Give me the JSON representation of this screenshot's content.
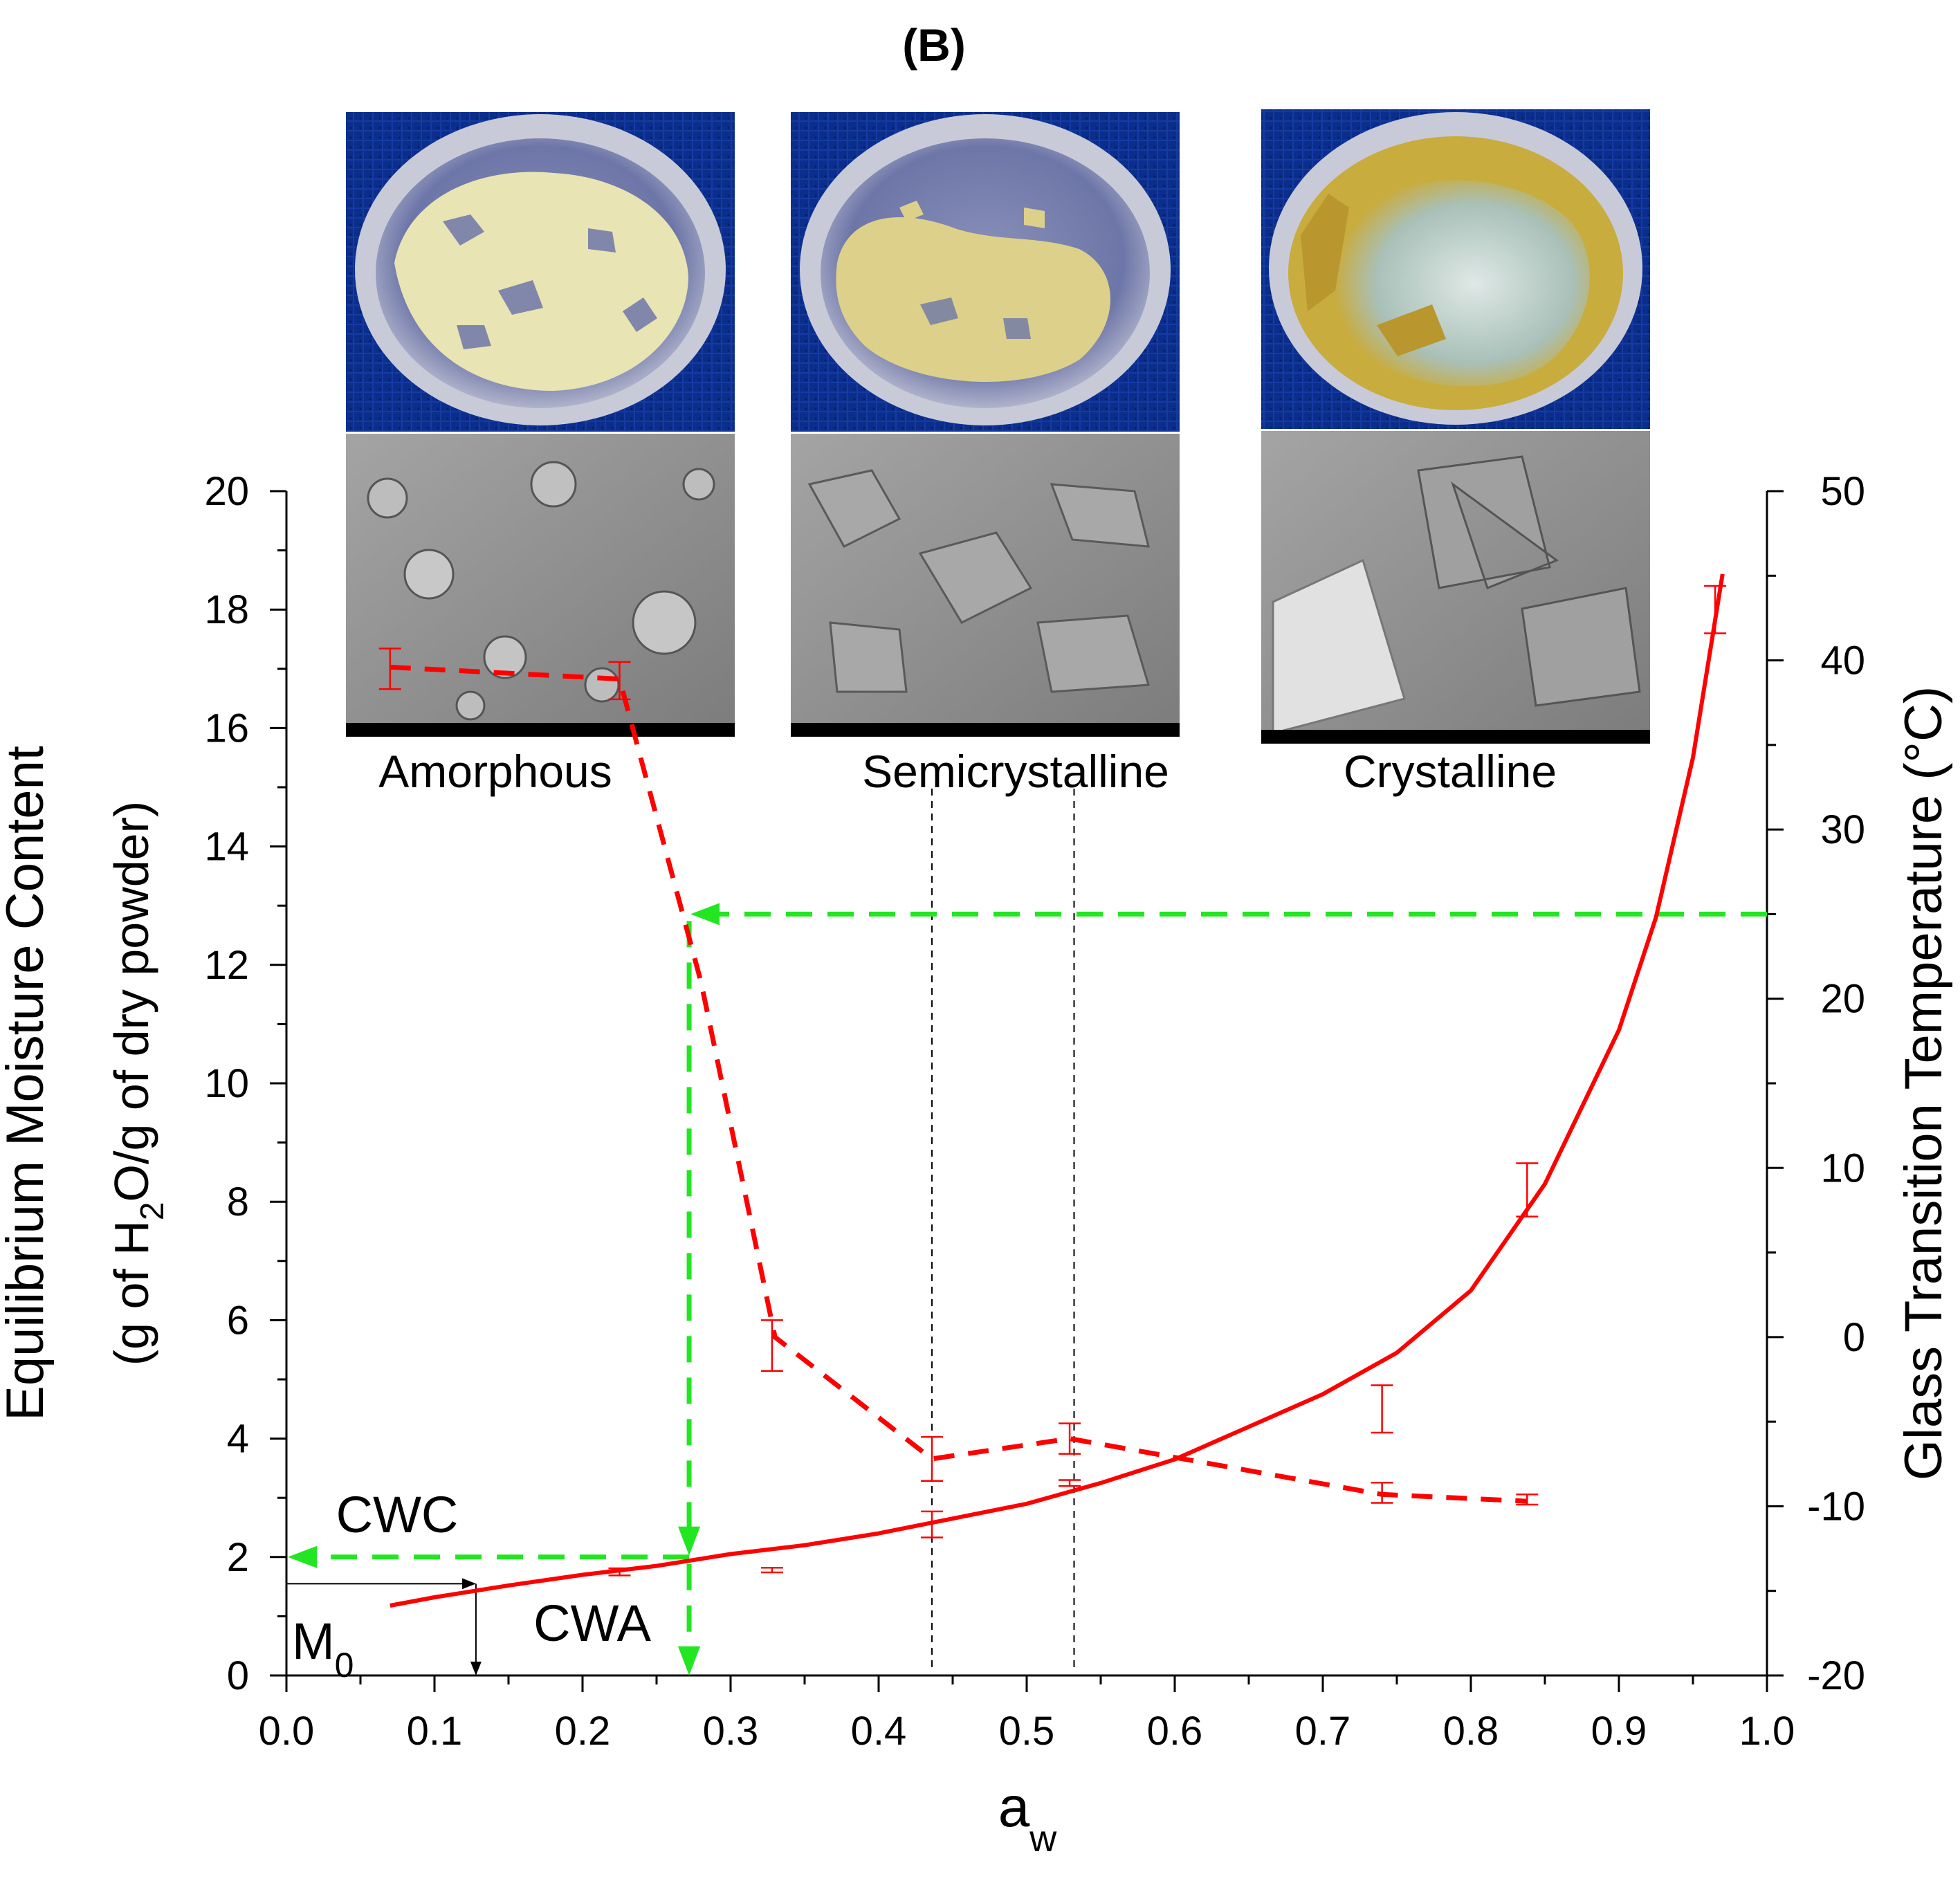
{
  "chart_data": {
    "type": "line",
    "panel_label": "(B)",
    "x_axis": {
      "label": "a",
      "label_sub": "w",
      "range": [
        0.0,
        1.0
      ],
      "ticks": [
        "0.0",
        "0.1",
        "0.2",
        "0.3",
        "0.4",
        "0.5",
        "0.6",
        "0.7",
        "0.8",
        "0.9",
        "1.0"
      ]
    },
    "y_left": {
      "label_line1": "Equilibrium Moisture Content",
      "label_line2_pre": "(g of H",
      "label_line2_sub": "2",
      "label_line2_post": "O/g of dry powder)",
      "range": [
        0,
        20
      ],
      "ticks": [
        "0",
        "2",
        "4",
        "6",
        "8",
        "10",
        "12",
        "14",
        "16",
        "18",
        "20"
      ]
    },
    "y_right": {
      "label": "Glass Transition Temperature (°C)",
      "range": [
        -20,
        50
      ],
      "ticks": [
        "-20",
        "-10",
        "0",
        "10",
        "20",
        "30",
        "40",
        "50"
      ]
    },
    "sorption_points": [
      {
        "aw": 0.225,
        "emc": 1.75,
        "err": 0.06
      },
      {
        "aw": 0.328,
        "emc": 1.78,
        "err": 0.04
      },
      {
        "aw": 0.436,
        "emc": 2.55,
        "err": 0.22
      },
      {
        "aw": 0.529,
        "emc": 3.25,
        "err": 0.05
      },
      {
        "aw": 0.74,
        "emc": 4.5,
        "err": 0.4
      },
      {
        "aw": 0.838,
        "emc": 8.2,
        "err": 0.45
      },
      {
        "aw": 0.965,
        "emc": 18.0,
        "err": 0.4
      }
    ],
    "sorption_fit": [
      [
        0.07,
        1.18
      ],
      [
        0.1,
        1.32
      ],
      [
        0.15,
        1.52
      ],
      [
        0.2,
        1.7
      ],
      [
        0.25,
        1.85
      ],
      [
        0.3,
        2.05
      ],
      [
        0.35,
        2.2
      ],
      [
        0.4,
        2.4
      ],
      [
        0.45,
        2.65
      ],
      [
        0.5,
        2.9
      ],
      [
        0.55,
        3.25
      ],
      [
        0.6,
        3.65
      ],
      [
        0.65,
        4.2
      ],
      [
        0.7,
        4.75
      ],
      [
        0.75,
        5.45
      ],
      [
        0.8,
        6.5
      ],
      [
        0.85,
        8.3
      ],
      [
        0.9,
        10.9
      ],
      [
        0.925,
        12.8
      ],
      [
        0.95,
        15.5
      ],
      [
        0.97,
        18.6
      ]
    ],
    "tg_points": [
      {
        "aw": 0.07,
        "tg": 39.5,
        "err": 1.2
      },
      {
        "aw": 0.225,
        "tg": 38.8,
        "err": 1.1
      },
      {
        "aw": 0.328,
        "tg": -0.5,
        "err": 1.5
      },
      {
        "aw": 0.436,
        "tg": -7.2,
        "err": 1.3
      },
      {
        "aw": 0.529,
        "tg": -6.0,
        "err": 0.9
      },
      {
        "aw": 0.74,
        "tg": -9.2,
        "err": 0.6
      },
      {
        "aw": 0.838,
        "tg": -9.6,
        "err": 0.3
      }
    ],
    "tg_line": [
      [
        0.07,
        39.6
      ],
      [
        0.225,
        38.9
      ],
      [
        0.24,
        34.0
      ],
      [
        0.28,
        21.0
      ],
      [
        0.33,
        0.0
      ],
      [
        0.436,
        -7.2
      ],
      [
        0.529,
        -6.0
      ],
      [
        0.74,
        -9.3
      ],
      [
        0.838,
        -9.7
      ]
    ],
    "reference_lines": [
      {
        "aw": 0.436,
        "style": "dashed"
      },
      {
        "aw": 0.532,
        "style": "dashed"
      }
    ],
    "annotations": {
      "cwc": "CWC",
      "cwa": "CWA",
      "m0": "M",
      "m0_sub": "0",
      "cwc_value_emc": 2.0,
      "cwa_value_aw": 0.272,
      "storage_tg": 25,
      "m0_value_emc": 1.55,
      "m0_value_aw": 0.128
    },
    "image_labels": [
      "Amorphous",
      "Semicrystalline",
      "Crystalline"
    ],
    "colors": {
      "series": "#ff0000",
      "guide": "#22e622",
      "axis": "#000000",
      "photo_background": "#0a2d8a",
      "sem_grey": "#8e8e8e",
      "dish": "#b8b9cc",
      "powder_amorphous": "#e8e4b4",
      "powder_semicrystalline": "#ddd08a",
      "crystalline_paste": "#c8ac3e"
    }
  }
}
